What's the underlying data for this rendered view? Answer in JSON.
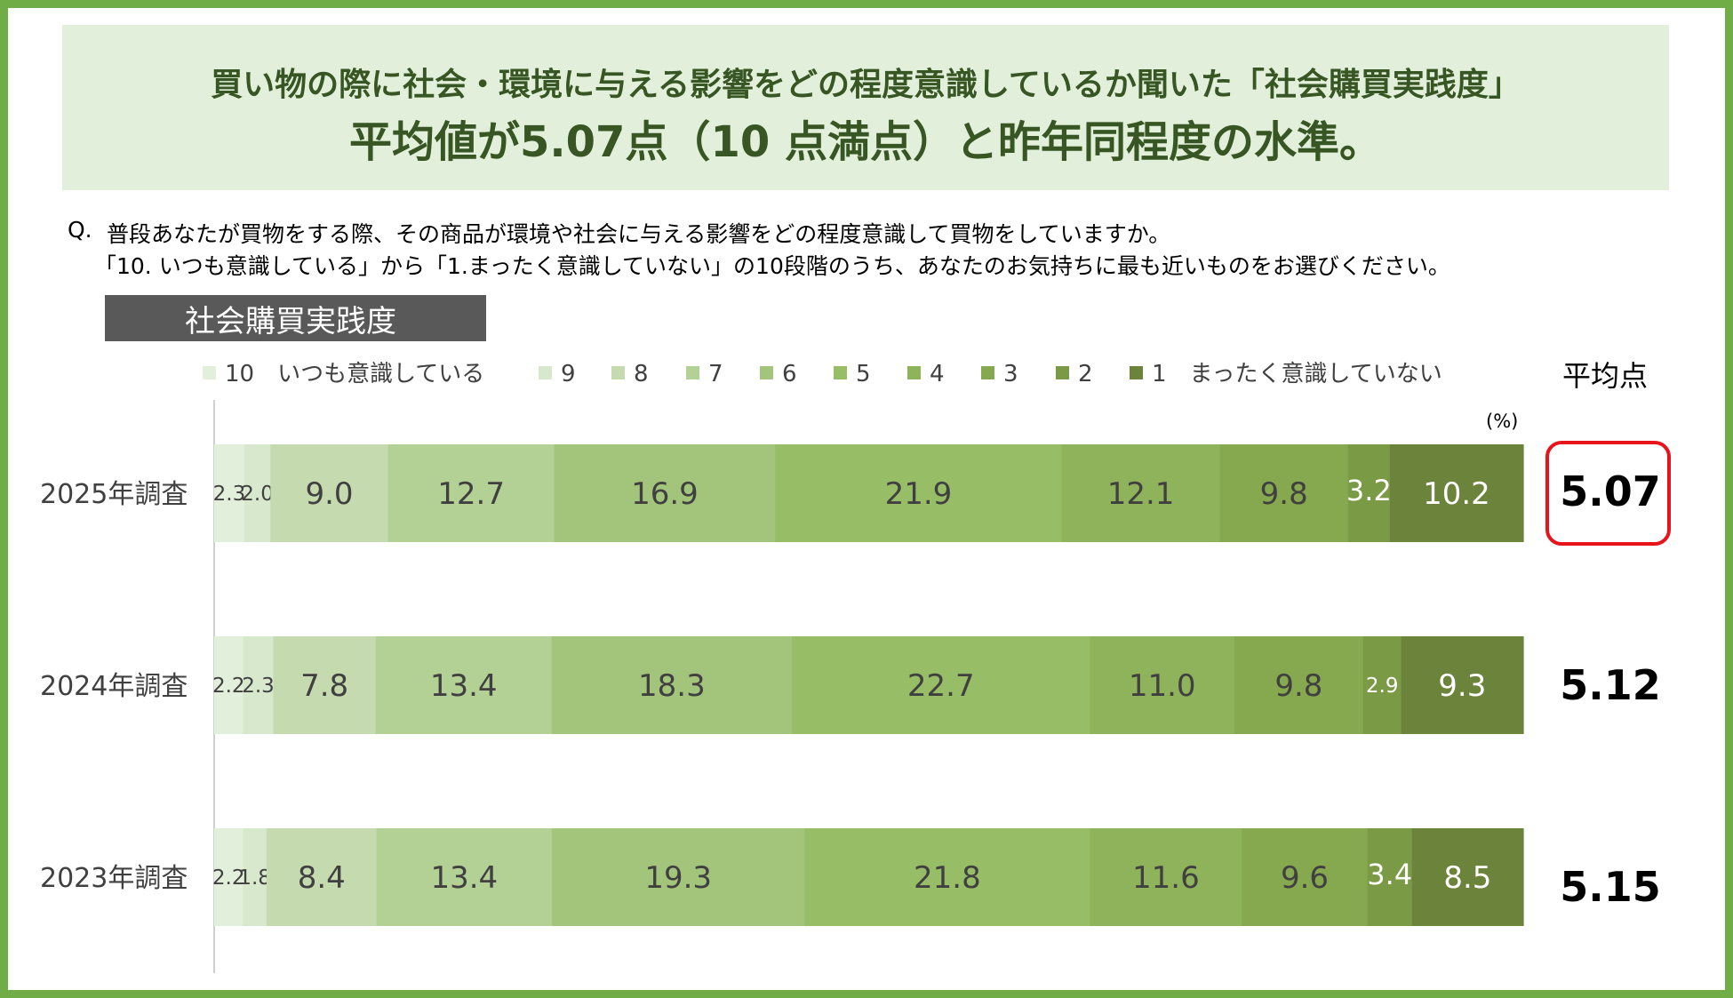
{
  "headline": {
    "line1": "買い物の際に社会・環境に与える影響をどの程度意識しているか聞いた「社会購買実践度」",
    "line2": "平均値が5.07点（10 点満点）と昨年同程度の水準。"
  },
  "question": {
    "label": "Q.",
    "line1": "普段あなたが買物をする際、その商品が環境や社会に与える影響をどの程度意識して買物をしていますか。",
    "line2": "「10. いつも意識している」から「1.まったく意識していない」の10段階のうち、あなたのお気持ちに最も近いものをお選びください。"
  },
  "section_tag": "社会購買実践度",
  "average_header": "平均点",
  "unit_label": "(%)",
  "colors": {
    "frame": "#70ad47",
    "headline_bg": "#e2efda",
    "headline_text": "#375623",
    "highlight": "#e8141b",
    "tag_bg": "#595959"
  },
  "chart_data": {
    "type": "bar",
    "orientation": "horizontal",
    "stacked": true,
    "percent": true,
    "categories": [
      "2025年調査",
      "2024年調査",
      "2023年調査"
    ],
    "series": [
      {
        "name": "10　いつも意識している",
        "color": "#e2efda",
        "values": [
          2.3,
          2.2,
          2.2
        ]
      },
      {
        "name": "9",
        "color": "#d8e8cd",
        "values": [
          2.0,
          2.3,
          1.8
        ]
      },
      {
        "name": "8",
        "color": "#c5daae",
        "values": [
          9.0,
          7.8,
          8.4
        ]
      },
      {
        "name": "7",
        "color": "#b3d095",
        "values": [
          12.7,
          13.4,
          13.4
        ]
      },
      {
        "name": "6",
        "color": "#a3c57b",
        "values": [
          16.9,
          18.3,
          19.3
        ]
      },
      {
        "name": "5",
        "color": "#97bd66",
        "values": [
          21.9,
          22.7,
          21.8
        ]
      },
      {
        "name": "4",
        "color": "#8fb35a",
        "values": [
          12.1,
          11.0,
          11.6
        ]
      },
      {
        "name": "3",
        "color": "#86a84f",
        "values": [
          9.8,
          9.8,
          9.6
        ]
      },
      {
        "name": "2",
        "color": "#7a9a45",
        "values": [
          3.2,
          2.9,
          3.4
        ]
      },
      {
        "name": "1　まったく意識していない",
        "color": "#6b833a",
        "values": [
          10.2,
          9.3,
          8.5
        ]
      }
    ],
    "light_label_series": [
      8,
      9
    ],
    "averages": [
      "5.07",
      "5.12",
      "5.15"
    ],
    "highlighted_average": 0,
    "xlim": [
      0,
      100
    ],
    "legend_position": "top"
  }
}
